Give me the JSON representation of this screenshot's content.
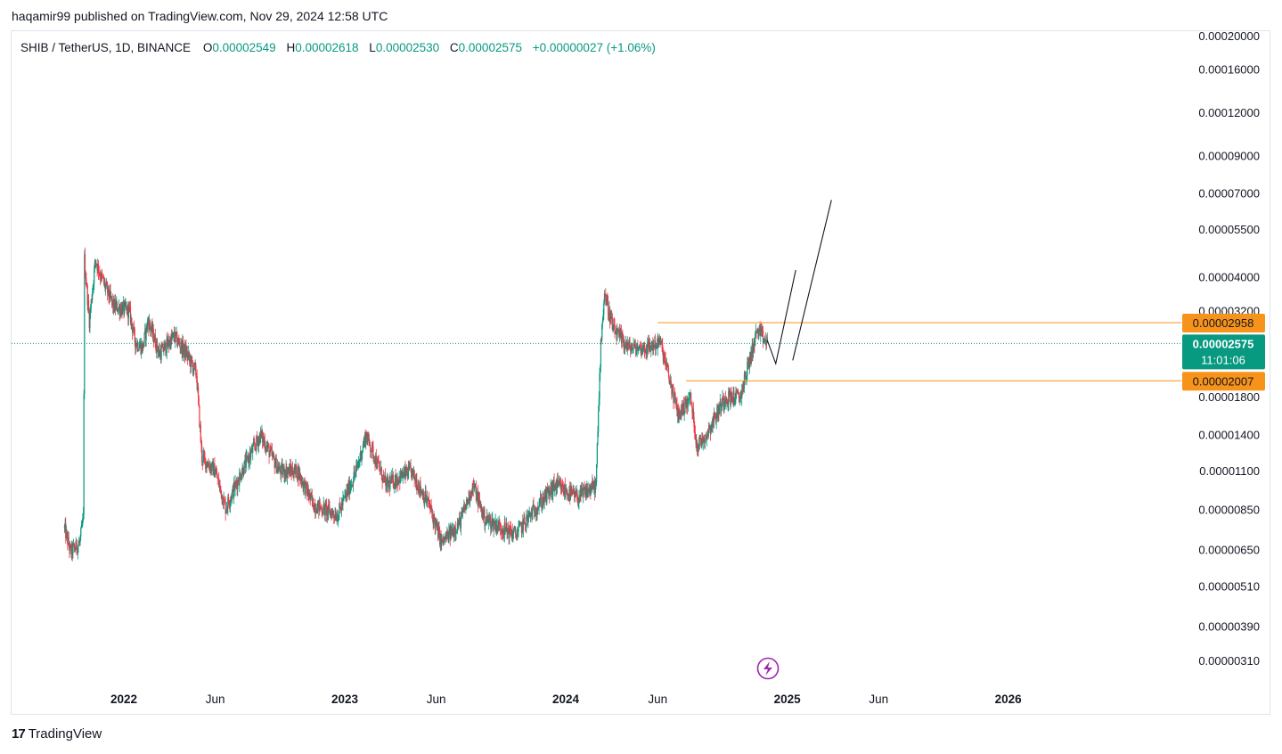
{
  "header": {
    "publisher": "haqamir99 published on TradingView.com, Nov 29, 2024 12:58 UTC"
  },
  "legend": {
    "symbol": "SHIB / TetherUS, 1D, BINANCE",
    "open_label": "O",
    "open": "0.00002549",
    "high_label": "H",
    "high": "0.00002618",
    "low_label": "L",
    "low": "0.00002530",
    "close_label": "C",
    "close": "0.00002575",
    "change": "+0.00000027 (+1.06%)"
  },
  "footer": {
    "brand": "TradingView"
  },
  "colors": {
    "up": "#089981",
    "down": "#f23645",
    "level_line": "#f7931a",
    "current_price": "#089981",
    "drawing": "#131722",
    "lightning": "#9c27b0"
  },
  "chart_data": {
    "type": "candlestick",
    "scale": "log",
    "y_axis_ticks": [
      "0.00020000",
      "0.00016000",
      "0.00012000",
      "0.00009000",
      "0.00007000",
      "0.00005500",
      "0.00004000",
      "0.00003200",
      "0.00001800",
      "0.00001400",
      "0.00001100",
      "0.00000850",
      "0.00000650",
      "0.00000510",
      "0.00000390",
      "0.00000310"
    ],
    "x_axis_ticks": [
      {
        "label": "2022",
        "date": "2022-01-01",
        "bold": true
      },
      {
        "label": "Jun",
        "date": "2022-06-01",
        "bold": false
      },
      {
        "label": "2023",
        "date": "2023-01-01",
        "bold": true
      },
      {
        "label": "Jun",
        "date": "2023-06-01",
        "bold": false
      },
      {
        "label": "2024",
        "date": "2024-01-01",
        "bold": true
      },
      {
        "label": "Jun",
        "date": "2024-06-01",
        "bold": false
      },
      {
        "label": "2025",
        "date": "2025-01-01",
        "bold": true
      },
      {
        "label": "Jun",
        "date": "2025-06-01",
        "bold": false
      },
      {
        "label": "2026",
        "date": "2026-01-01",
        "bold": true
      }
    ],
    "price_path": [
      [
        "2021-09-25",
        7.5e-06
      ],
      [
        "2021-10-05",
        6.4e-06
      ],
      [
        "2021-10-20",
        6.8e-06
      ],
      [
        "2021-10-26",
        8e-06
      ],
      [
        "2021-10-28",
        4.5e-05
      ],
      [
        "2021-11-05",
        3e-05
      ],
      [
        "2021-11-15",
        4.5e-05
      ],
      [
        "2021-11-25",
        4e-05
      ],
      [
        "2021-12-15",
        3.3e-05
      ],
      [
        "2022-01-10",
        3.2e-05
      ],
      [
        "2022-01-20",
        2.6e-05
      ],
      [
        "2022-02-01",
        2.5e-05
      ],
      [
        "2022-02-10",
        3e-05
      ],
      [
        "2022-03-01",
        2.4e-05
      ],
      [
        "2022-03-25",
        2.7e-05
      ],
      [
        "2022-04-15",
        2.4e-05
      ],
      [
        "2022-05-01",
        2.1e-05
      ],
      [
        "2022-05-10",
        1.2e-05
      ],
      [
        "2022-06-01",
        1.1e-05
      ],
      [
        "2022-06-18",
        8.6e-06
      ],
      [
        "2022-07-15",
        1.1e-05
      ],
      [
        "2022-08-15",
        1.4e-05
      ],
      [
        "2022-09-15",
        1.1e-05
      ],
      [
        "2022-10-15",
        1.1e-05
      ],
      [
        "2022-11-10",
        8.8e-06
      ],
      [
        "2022-12-20",
        8.2e-06
      ],
      [
        "2023-01-20",
        1.1e-05
      ],
      [
        "2023-02-05",
        1.4e-05
      ],
      [
        "2023-03-10",
        1e-05
      ],
      [
        "2023-04-20",
        1.1e-05
      ],
      [
        "2023-05-20",
        8.8e-06
      ],
      [
        "2023-06-10",
        6.8e-06
      ],
      [
        "2023-07-10",
        7.8e-06
      ],
      [
        "2023-08-01",
        1e-05
      ],
      [
        "2023-08-20",
        8e-06
      ],
      [
        "2023-10-10",
        7.2e-06
      ],
      [
        "2023-11-10",
        8.5e-06
      ],
      [
        "2023-12-15",
        1e-05
      ],
      [
        "2024-01-20",
        9.2e-06
      ],
      [
        "2024-02-20",
        1e-05
      ],
      [
        "2024-02-28",
        2.6e-05
      ],
      [
        "2024-03-05",
        3.6e-05
      ],
      [
        "2024-03-20",
        2.8e-05
      ],
      [
        "2024-04-15",
        2.5e-05
      ],
      [
        "2024-05-15",
        2.5e-05
      ],
      [
        "2024-06-05",
        2.6e-05
      ],
      [
        "2024-07-05",
        1.6e-05
      ],
      [
        "2024-07-25",
        1.8e-05
      ],
      [
        "2024-08-05",
        1.3e-05
      ],
      [
        "2024-08-20",
        1.4e-05
      ],
      [
        "2024-09-20",
        1.8e-05
      ],
      [
        "2024-10-15",
        1.8e-05
      ],
      [
        "2024-11-12",
        2.8e-05
      ],
      [
        "2024-11-29",
        2.575e-05
      ]
    ],
    "horizontal_levels": [
      {
        "value": "0.00002958",
        "from_date": "2024-06-01"
      },
      {
        "value": "0.00002007",
        "from_date": "2024-07-18"
      }
    ],
    "current_price": {
      "value": "0.00002575",
      "countdown": "11:01:06"
    },
    "projection_path": [
      [
        "2024-11-29",
        2.63e-05
      ],
      [
        "2024-12-13",
        2.25e-05
      ],
      [
        "2025-01-15",
        4.2e-05
      ],
      [
        "2025-01-10",
        2.3e-05
      ],
      [
        "2025-03-15",
        6.7e-05
      ]
    ]
  }
}
